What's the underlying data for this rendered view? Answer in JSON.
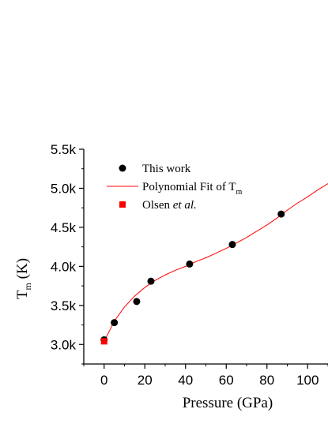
{
  "chart_data": {
    "type": "scatter",
    "xlabel": "Pressure (GPa)",
    "ylabel": "T",
    "ylabel_sub": "m",
    "ylabel_unit": "(K)",
    "xlim": [
      -10,
      110
    ],
    "ylim": [
      2750,
      5500
    ],
    "x_ticks": [
      0,
      20,
      40,
      60,
      80,
      100
    ],
    "y_ticks": [
      {
        "value": 3000,
        "label": "3.0k"
      },
      {
        "value": 3500,
        "label": "3.5k"
      },
      {
        "value": 4000,
        "label": "4.0k"
      },
      {
        "value": 4500,
        "label": "4.5k"
      },
      {
        "value": 5000,
        "label": "5.0k"
      },
      {
        "value": 5500,
        "label": "5.5k"
      }
    ],
    "legend_position": "top-left",
    "series": [
      {
        "name": "This work",
        "kind": "scatter",
        "marker": "circle",
        "color": "#000000",
        "x": [
          0,
          5,
          16,
          23,
          42,
          63,
          87
        ],
        "y": [
          3060,
          3280,
          3550,
          3810,
          4030,
          4280,
          4670
        ]
      },
      {
        "name": "Polynomial Fit of T",
        "name_sub": "m",
        "kind": "line",
        "color": "#ff0000",
        "x": [
          0,
          5,
          10,
          15,
          20,
          25,
          30,
          35,
          40,
          45,
          50,
          55,
          60,
          65,
          70,
          75,
          80,
          85,
          90,
          95,
          100,
          105,
          110
        ],
        "y": [
          3040,
          3300,
          3480,
          3620,
          3730,
          3820,
          3890,
          3950,
          4000,
          4060,
          4110,
          4170,
          4230,
          4300,
          4370,
          4450,
          4530,
          4620,
          4720,
          4810,
          4890,
          4980,
          5060
        ]
      },
      {
        "name": "Olsen",
        "name_italic": "et al.",
        "kind": "scatter",
        "marker": "square",
        "color": "#ff0000",
        "x": [
          0
        ],
        "y": [
          3040
        ]
      }
    ]
  }
}
